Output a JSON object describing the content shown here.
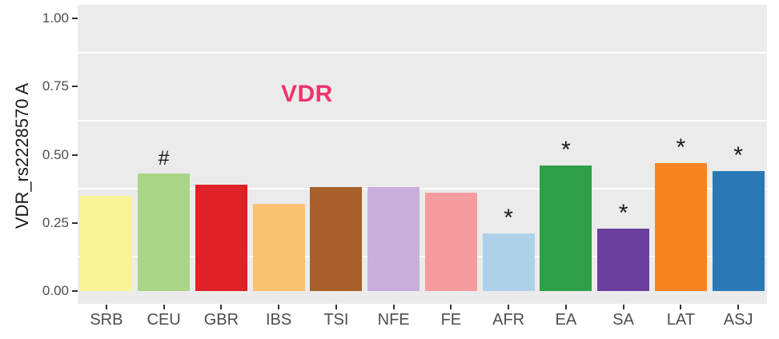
{
  "figure": {
    "background": "#FFFFFF",
    "panel_background": "#EBEBEB",
    "gridline_color": "#FFFFFF",
    "axis_text_color": "#4D4D4D",
    "axis_title_color": "#1A1A1A",
    "tick_mark_color": "#333333"
  },
  "chart_data": {
    "type": "bar",
    "title": "VDR",
    "title_color": "#F1336C",
    "ylabel": "VDR_rs2228570 A",
    "xlabel": "",
    "categories": [
      "SRB",
      "CEU",
      "GBR",
      "IBS",
      "TSI",
      "NFE",
      "FE",
      "AFR",
      "EA",
      "SA",
      "LAT",
      "ASJ"
    ],
    "values": [
      0.35,
      0.43,
      0.39,
      0.32,
      0.38,
      0.38,
      0.36,
      0.21,
      0.46,
      0.23,
      0.47,
      0.44
    ],
    "bar_colors": [
      "#F9F397",
      "#AAD487",
      "#E02127",
      "#FBC173",
      "#A95F2B",
      "#CAAFDA",
      "#F79C9E",
      "#AFD1E8",
      "#2F9E48",
      "#6B3F9E",
      "#F58420",
      "#2A79B6"
    ],
    "annotations": [
      "",
      "#",
      "",
      "",
      "",
      "",
      "",
      "*",
      "*",
      "*",
      "*",
      "*"
    ],
    "annotation_color": "#1A1A1A",
    "ylim": [
      0,
      1
    ],
    "yticks": {
      "values": [
        0,
        0.25,
        0.5,
        0.75,
        1.0
      ],
      "labels": [
        "0.00",
        "0.25",
        "0.50",
        "0.75",
        "1.00"
      ]
    },
    "grid": {
      "minor_horizontal": true,
      "major_horizontal": false
    },
    "legend": "none"
  }
}
